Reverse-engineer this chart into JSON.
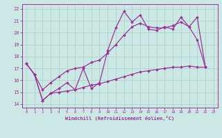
{
  "xlabel": "Windchill (Refroidissement éolien,°C)",
  "bg_color": "#cce8e4",
  "grid_color": "#aaccc4",
  "line_color": "#993399",
  "xlim": [
    -0.5,
    23.5
  ],
  "ylim": [
    13.7,
    22.4
  ],
  "xticks": [
    0,
    1,
    2,
    3,
    4,
    5,
    6,
    7,
    8,
    9,
    10,
    11,
    12,
    13,
    14,
    15,
    16,
    17,
    18,
    19,
    20,
    21,
    22,
    23
  ],
  "yticks": [
    14,
    15,
    16,
    17,
    18,
    19,
    20,
    21,
    22
  ],
  "x_jagged": [
    0,
    1,
    2,
    3,
    4,
    5,
    6,
    7,
    8,
    9,
    10,
    11,
    12,
    13,
    14,
    15,
    16,
    17,
    18,
    19,
    20,
    21,
    22
  ],
  "y_jagged": [
    17.4,
    16.5,
    14.3,
    14.9,
    15.3,
    15.8,
    15.2,
    17.0,
    15.3,
    15.8,
    18.5,
    20.4,
    21.8,
    20.9,
    21.5,
    20.3,
    20.2,
    20.5,
    20.3,
    21.3,
    20.5,
    19.4,
    17.1
  ],
  "x_upper": [
    0,
    1,
    2,
    3,
    4,
    5,
    6,
    7,
    8,
    9,
    10,
    11,
    12,
    13,
    14,
    15,
    16,
    17,
    18,
    19,
    20,
    21,
    22
  ],
  "y_upper": [
    17.4,
    16.5,
    15.2,
    15.8,
    16.3,
    16.8,
    17.0,
    17.1,
    17.5,
    17.7,
    18.3,
    19.0,
    19.8,
    20.5,
    20.8,
    20.5,
    20.4,
    20.4,
    20.6,
    20.9,
    20.5,
    21.3,
    17.1
  ],
  "x_lower": [
    0,
    1,
    2,
    3,
    4,
    5,
    6,
    7,
    8,
    9,
    10,
    11,
    12,
    13,
    14,
    15,
    16,
    17,
    18,
    19,
    20,
    21,
    22
  ],
  "y_lower": [
    17.4,
    16.5,
    14.3,
    14.9,
    15.0,
    15.1,
    15.2,
    15.4,
    15.6,
    15.7,
    15.9,
    16.1,
    16.3,
    16.5,
    16.7,
    16.8,
    16.9,
    17.0,
    17.1,
    17.1,
    17.2,
    17.1,
    17.1
  ]
}
